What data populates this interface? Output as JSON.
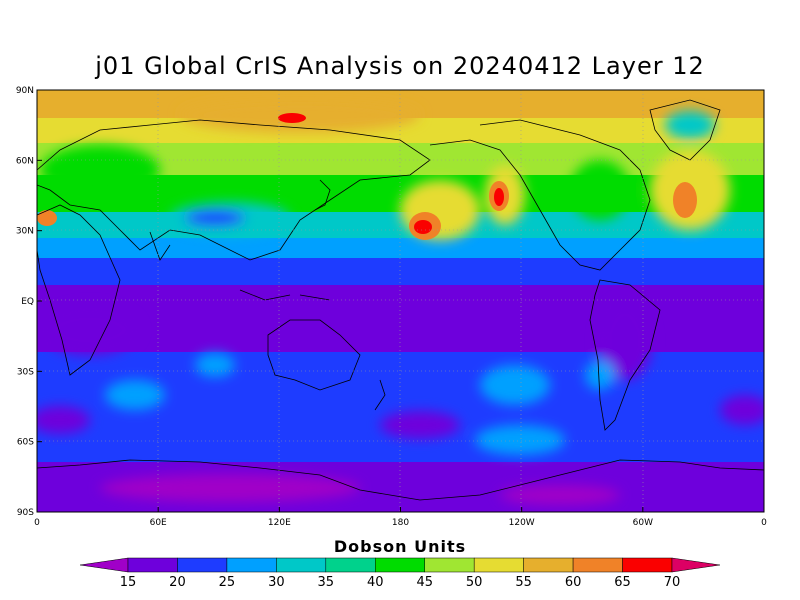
{
  "title": "j01 Global CrIS Analysis on 20240412 Layer 12",
  "colorbar": {
    "title": "Dobson Units",
    "levels": [
      15,
      20,
      25,
      30,
      35,
      40,
      45,
      50,
      55,
      60,
      65,
      70
    ],
    "colors": [
      "#a000c8",
      "#6e00dc",
      "#1e3cff",
      "#00a0ff",
      "#00c8c8",
      "#00d28c",
      "#00dc00",
      "#a0e632",
      "#e6dc32",
      "#e6af2d",
      "#f08228",
      "#fa0000",
      "#dc0064"
    ]
  },
  "axes": {
    "lat_ticks": [
      "90N",
      "60N",
      "30N",
      "EQ",
      "30S",
      "60S",
      "90S"
    ],
    "lon_ticks": [
      "0",
      "60E",
      "120E",
      "180",
      "120W",
      "60W",
      "0"
    ]
  }
}
